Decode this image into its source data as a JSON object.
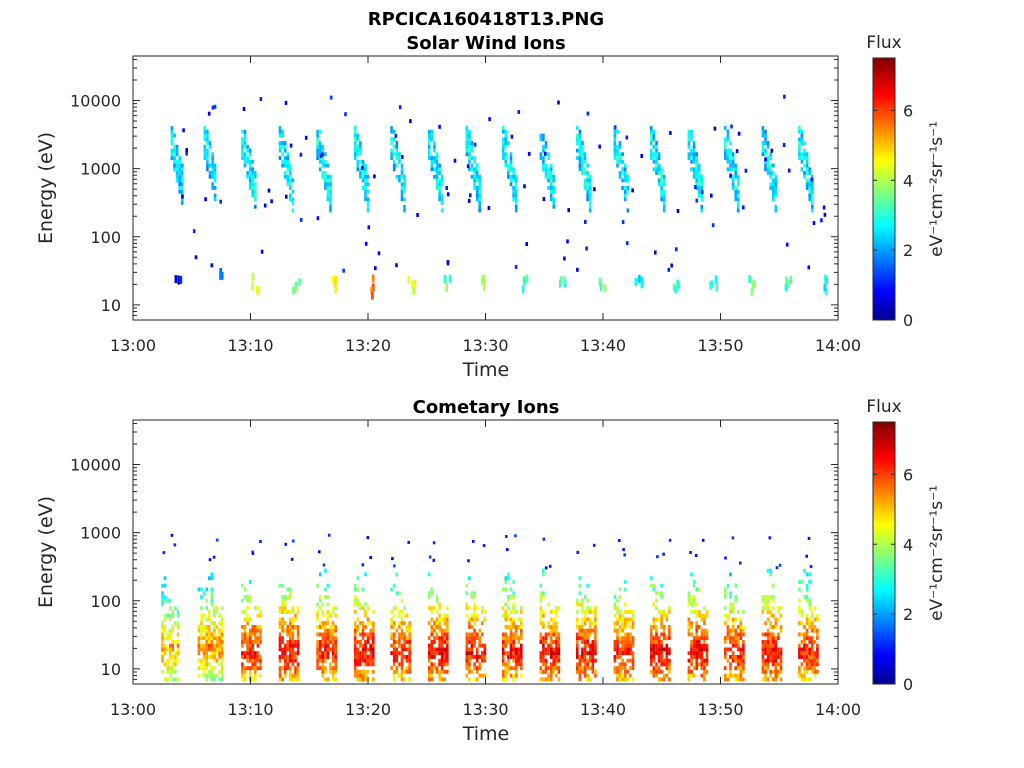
{
  "figure": {
    "title": "RPCICA160418T13.PNG"
  },
  "colormap": "jet",
  "chart_data": [
    {
      "type": "heatmap",
      "title": "Solar Wind Ions",
      "xlabel": "Time",
      "ylabel": "Energy (eV)",
      "x_ticks": [
        "13:00",
        "13:10",
        "13:20",
        "13:30",
        "13:40",
        "13:50",
        "14:00"
      ],
      "x_range_minutes": [
        0,
        60
      ],
      "y_scale": "log",
      "y_range": [
        6,
        45000
      ],
      "y_ticks": [
        "10",
        "100",
        "1000",
        "10000"
      ],
      "y_tick_values": [
        10,
        100,
        1000,
        10000
      ],
      "colorbar": {
        "title": "Flux",
        "label": "eV⁻¹cm⁻²sr⁻¹s⁻¹",
        "ticks": [
          "0",
          "2",
          "4",
          "6"
        ],
        "tick_values": [
          0,
          2,
          4,
          6
        ],
        "range": [
          0,
          7.5
        ]
      },
      "scan_start_minutes": [
        3.0,
        6.0,
        8.8,
        12.0,
        15.3,
        18.5,
        21.6,
        24.8,
        28.0,
        31.2,
        34.3,
        37.5,
        40.6,
        43.8,
        46.9,
        50.1,
        53.2,
        56.4
      ],
      "scans": [
        {
          "t": [
            3.2,
            4.2
          ],
          "e": [
            400,
            2600
          ],
          "flux": 2.8
        },
        {
          "t": [
            6.0,
            7.0
          ],
          "e": [
            450,
            2600
          ],
          "flux": 2.8
        },
        {
          "t": [
            9.2,
            10.5
          ],
          "e": [
            300,
            2600
          ],
          "flux": 2.9
        },
        {
          "t": [
            12.4,
            13.6
          ],
          "e": [
            300,
            2600
          ],
          "flux": 2.9
        },
        {
          "t": [
            15.6,
            16.8
          ],
          "e": [
            300,
            2600
          ],
          "flux": 2.9
        },
        {
          "t": [
            18.8,
            20.0
          ],
          "e": [
            300,
            2600
          ],
          "flux": 2.9
        },
        {
          "t": [
            21.9,
            23.1
          ],
          "e": [
            300,
            2600
          ],
          "flux": 2.9
        },
        {
          "t": [
            25.1,
            26.3
          ],
          "e": [
            300,
            2600
          ],
          "flux": 2.9
        },
        {
          "t": [
            28.3,
            29.5
          ],
          "e": [
            300,
            2600
          ],
          "flux": 2.9
        },
        {
          "t": [
            31.4,
            32.6
          ],
          "e": [
            300,
            2600
          ],
          "flux": 2.9
        },
        {
          "t": [
            34.6,
            35.8
          ],
          "e": [
            300,
            2600
          ],
          "flux": 2.9
        },
        {
          "t": [
            37.7,
            38.9
          ],
          "e": [
            300,
            2600
          ],
          "flux": 2.9
        },
        {
          "t": [
            40.9,
            42.1
          ],
          "e": [
            300,
            2600
          ],
          "flux": 2.9
        },
        {
          "t": [
            44.0,
            45.2
          ],
          "e": [
            300,
            2600
          ],
          "flux": 2.9
        },
        {
          "t": [
            47.2,
            48.4
          ],
          "e": [
            300,
            2600
          ],
          "flux": 2.9
        },
        {
          "t": [
            50.3,
            51.5
          ],
          "e": [
            300,
            2600
          ],
          "flux": 2.9
        },
        {
          "t": [
            53.5,
            54.7
          ],
          "e": [
            300,
            2600
          ],
          "flux": 2.9
        },
        {
          "t": [
            56.6,
            57.8
          ],
          "e": [
            300,
            2600
          ],
          "flux": 2.9
        }
      ],
      "low_energy_patches": [
        {
          "t": 3.8,
          "e": [
            22,
            28
          ],
          "flux": 1.0
        },
        {
          "t": 7.2,
          "e": [
            30,
            36
          ],
          "flux": 2.2
        },
        {
          "t": 10.3,
          "e": [
            18,
            30
          ],
          "flux": 4.2
        },
        {
          "t": 13.8,
          "e": [
            18,
            28
          ],
          "flux": 3.5
        },
        {
          "t": 17.0,
          "e": [
            18,
            28
          ],
          "flux": 4.5
        },
        {
          "t": 20.2,
          "e": [
            15,
            30
          ],
          "flux": 5.6
        },
        {
          "t": 23.6,
          "e": [
            14,
            30
          ],
          "flux": 4.6
        },
        {
          "t": 26.7,
          "e": [
            18,
            28
          ],
          "flux": 3.6
        },
        {
          "t": 29.9,
          "e": [
            18,
            28
          ],
          "flux": 3.8
        },
        {
          "t": 33.2,
          "e": [
            18,
            28
          ],
          "flux": 3.4
        },
        {
          "t": 36.5,
          "e": [
            18,
            28
          ],
          "flux": 3.2
        },
        {
          "t": 39.8,
          "e": [
            18,
            28
          ],
          "flux": 3.6
        },
        {
          "t": 42.9,
          "e": [
            22,
            30
          ],
          "flux": 2.8
        },
        {
          "t": 46.1,
          "e": [
            18,
            28
          ],
          "flux": 3.0
        },
        {
          "t": 49.3,
          "e": [
            18,
            28
          ],
          "flux": 3.0
        },
        {
          "t": 52.5,
          "e": [
            18,
            28
          ],
          "flux": 3.4
        },
        {
          "t": 55.6,
          "e": [
            18,
            28
          ],
          "flux": 3.2
        },
        {
          "t": 58.7,
          "e": [
            14,
            28
          ],
          "flux": 3.0
        }
      ]
    },
    {
      "type": "heatmap",
      "title": "Cometary Ions",
      "xlabel": "Time",
      "ylabel": "Energy (eV)",
      "x_ticks": [
        "13:00",
        "13:10",
        "13:20",
        "13:30",
        "13:40",
        "13:50",
        "14:00"
      ],
      "x_range_minutes": [
        0,
        60
      ],
      "y_scale": "log",
      "y_range": [
        6,
        45000
      ],
      "y_ticks": [
        "10",
        "100",
        "1000",
        "10000"
      ],
      "y_tick_values": [
        10,
        100,
        1000,
        10000
      ],
      "colorbar": {
        "title": "Flux",
        "label": "eV⁻¹cm⁻²sr⁻¹s⁻¹",
        "ticks": [
          "0",
          "2",
          "4",
          "6"
        ],
        "tick_values": [
          0,
          2,
          4,
          6
        ],
        "range": [
          0,
          7.5
        ]
      },
      "scans": [
        {
          "t": [
            2.4,
            3.8
          ],
          "e": [
            7,
            250
          ],
          "peak_flux": 5.4,
          "peak_e": 20
        },
        {
          "t": [
            5.5,
            7.6
          ],
          "e": [
            7,
            250
          ],
          "peak_flux": 5.6,
          "peak_e": 22
        },
        {
          "t": [
            9.2,
            10.9
          ],
          "e": [
            7,
            300
          ],
          "peak_flux": 6.4,
          "peak_e": 18
        },
        {
          "t": [
            12.4,
            14.0
          ],
          "e": [
            7,
            300
          ],
          "peak_flux": 6.6,
          "peak_e": 18
        },
        {
          "t": [
            15.6,
            17.2
          ],
          "e": [
            7,
            300
          ],
          "peak_flux": 6.4,
          "peak_e": 18
        },
        {
          "t": [
            18.8,
            20.4
          ],
          "e": [
            7,
            300
          ],
          "peak_flux": 6.6,
          "peak_e": 18
        },
        {
          "t": [
            21.9,
            23.5
          ],
          "e": [
            7,
            300
          ],
          "peak_flux": 6.4,
          "peak_e": 18
        },
        {
          "t": [
            25.1,
            26.7
          ],
          "e": [
            7,
            300
          ],
          "peak_flux": 6.6,
          "peak_e": 18
        },
        {
          "t": [
            28.3,
            29.9
          ],
          "e": [
            7,
            300
          ],
          "peak_flux": 6.6,
          "peak_e": 18
        },
        {
          "t": [
            31.4,
            33.0
          ],
          "e": [
            7,
            300
          ],
          "peak_flux": 6.4,
          "peak_e": 18
        },
        {
          "t": [
            34.6,
            36.2
          ],
          "e": [
            7,
            300
          ],
          "peak_flux": 6.6,
          "peak_e": 18
        },
        {
          "t": [
            37.7,
            39.3
          ],
          "e": [
            7,
            300
          ],
          "peak_flux": 6.6,
          "peak_e": 18
        },
        {
          "t": [
            40.9,
            42.5
          ],
          "e": [
            7,
            300
          ],
          "peak_flux": 6.4,
          "peak_e": 18
        },
        {
          "t": [
            44.0,
            45.6
          ],
          "e": [
            7,
            300
          ],
          "peak_flux": 6.6,
          "peak_e": 18
        },
        {
          "t": [
            47.2,
            48.8
          ],
          "e": [
            7,
            300
          ],
          "peak_flux": 6.6,
          "peak_e": 18
        },
        {
          "t": [
            50.3,
            51.9
          ],
          "e": [
            7,
            300
          ],
          "peak_flux": 6.4,
          "peak_e": 18
        },
        {
          "t": [
            53.5,
            55.1
          ],
          "e": [
            7,
            300
          ],
          "peak_flux": 6.6,
          "peak_e": 18
        },
        {
          "t": [
            56.6,
            58.2
          ],
          "e": [
            7,
            300
          ],
          "peak_flux": 6.4,
          "peak_e": 18
        }
      ]
    }
  ]
}
